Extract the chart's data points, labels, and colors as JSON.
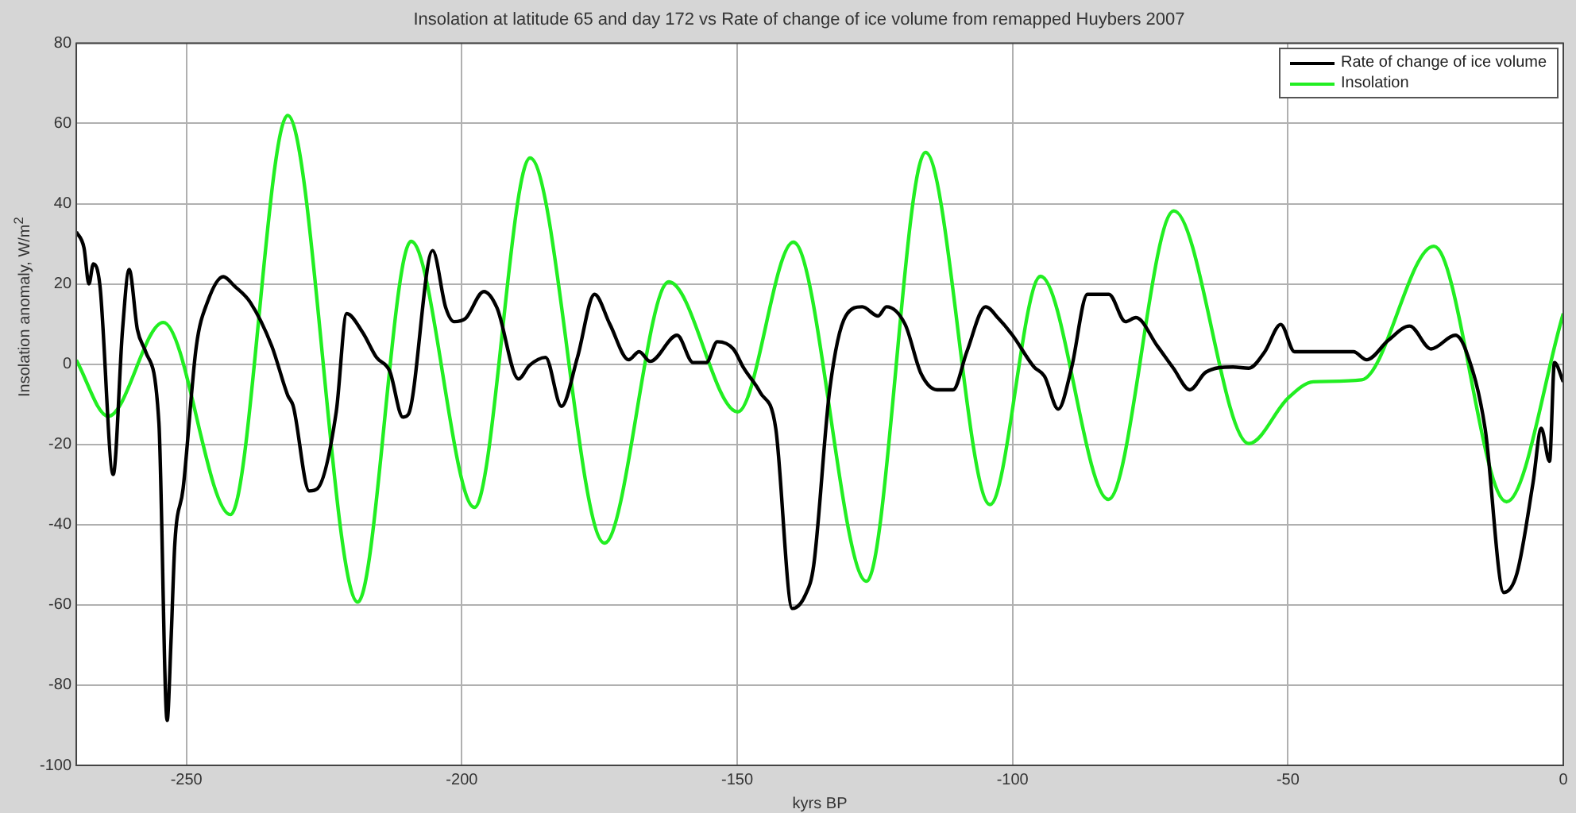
{
  "chart_data": {
    "type": "line",
    "title": "Insolation at latitude 65 and day 172 vs Rate of change of ice volume from remapped Huybers 2007",
    "xlabel": "kyrs BP",
    "ylabel": "Insolation anomaly, W/m$^{2}$",
    "xlim": [
      -270,
      0
    ],
    "xticks": [
      -250,
      -200,
      -150,
      -100,
      -50,
      0
    ],
    "ylim": [
      -100,
      80
    ],
    "yticks": [
      -100,
      -80,
      -60,
      -40,
      -20,
      0,
      20,
      40,
      60,
      80
    ],
    "grid": true,
    "legend": "top right",
    "line_style": "solid",
    "marker": "none",
    "series": [
      {
        "name": "Rate of change of ice volume",
        "color": "#000000",
        "x": [
          -270,
          -268.6,
          -267.7,
          -266.9,
          -265.7,
          -263.3,
          -261.6,
          -260.4,
          -258.9,
          -257.4,
          -255,
          -253.5,
          -252.8,
          -252.1,
          -250.6,
          -248.2,
          -246.2,
          -243.3,
          -241.3,
          -238.4,
          -234.5,
          -231.6,
          -230.6,
          -227.7,
          -226.2,
          -222.8,
          -220.9,
          -218,
          -215.5,
          -213.1,
          -210.7,
          -209.7,
          -205.3,
          -202.9,
          -201.4,
          -199.4,
          -196,
          -193.6,
          -189.7,
          -187.7,
          -184.8,
          -181.9,
          -179,
          -175.9,
          -173.1,
          -169.7,
          -167.8,
          -165.8,
          -160.9,
          -158,
          -155.6,
          -153.6,
          -150.7,
          -148.8,
          -145.8,
          -143,
          -140,
          -137.6,
          -136.1,
          -133.2,
          -130.3,
          -127.3,
          -124.4,
          -122.9,
          -119.5,
          -116.6,
          -113.7,
          -110.8,
          -108.3,
          -104.9,
          -102.5,
          -100,
          -96.1,
          -94.2,
          -91.7,
          -89.3,
          -86.4,
          -82.5,
          -79.5,
          -77.6,
          -73.7,
          -70.8,
          -67.8,
          -64.9,
          -60,
          -57.1,
          -54.2,
          -51.3,
          -48.8,
          -38.1,
          -35.7,
          -31.8,
          -27.9,
          -24,
          -19.6,
          -17.6,
          -14.2,
          -10.8,
          -8.4,
          -5.5,
          -4,
          -2.5,
          -1.6,
          0
        ],
        "values": [
          33,
          29,
          20,
          25,
          19.5,
          -27.5,
          8.6,
          23.6,
          8.6,
          3.1,
          -14.6,
          -88.8,
          -69,
          -44.6,
          -31,
          4.5,
          15.4,
          21.8,
          19.5,
          15.4,
          4.5,
          -7.8,
          -10.5,
          -31.6,
          -31,
          -11.9,
          12.6,
          7.9,
          1.7,
          -1.7,
          -13.2,
          -12.5,
          28.3,
          14,
          10.6,
          11.3,
          18.1,
          14,
          -3.7,
          -0.3,
          1.7,
          -10.5,
          1.7,
          17.4,
          9.9,
          1.1,
          3.1,
          0.7,
          7.2,
          0.4,
          0.4,
          5.6,
          3.8,
          -1,
          -7.1,
          -16,
          -60.9,
          -57.5,
          -50.1,
          -6.4,
          12,
          14.3,
          12,
          14.3,
          9.9,
          -2.4,
          -6.4,
          -6.4,
          3.1,
          14.3,
          11.3,
          7.2,
          -0.7,
          -3,
          -11.2,
          -1,
          17.4,
          17.4,
          10.6,
          11.6,
          4.5,
          -1,
          -6.4,
          -2,
          -0.7,
          -1,
          3.1,
          9.9,
          3.1,
          3.1,
          1.1,
          5.9,
          9.5,
          3.8,
          7.2,
          3.1,
          -16,
          -56.9,
          -52.1,
          -29.6,
          -16,
          -24.2,
          0.4,
          -4.4
        ]
      },
      {
        "name": "Insolation",
        "color": "#22ee22",
        "x": [
          -270,
          -264.2,
          -254.2,
          -242,
          -231.6,
          -218.9,
          -209.2,
          -197.7,
          -187.6,
          -174.1,
          -162.4,
          -149.9,
          -139.8,
          -126.5,
          -115.8,
          -104.1,
          -94.9,
          -82.6,
          -70.7,
          -57.1,
          -50,
          -45.4,
          -36.6,
          -23.5,
          -10.3,
          0
        ],
        "values": [
          1,
          -13,
          10.4,
          -37.5,
          62,
          -59.3,
          30.6,
          -35.7,
          51.4,
          -44.6,
          20.5,
          -11.9,
          30.4,
          -54.1,
          52.8,
          -35,
          21.9,
          -33.7,
          38.2,
          -19.8,
          -8.5,
          -4.4,
          -3.9,
          29.4,
          -34.3,
          12.6
        ]
      }
    ]
  }
}
